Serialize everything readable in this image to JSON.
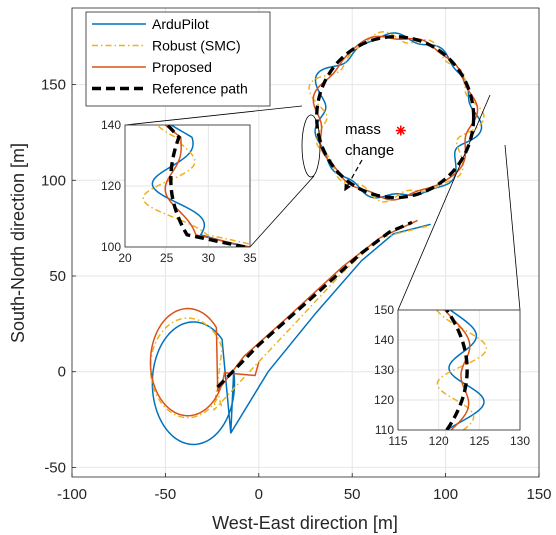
{
  "chart_data": {
    "type": "line",
    "xlabel": "West-East direction [m]",
    "ylabel": "South-North direction [m]",
    "xlim": [
      -100,
      150
    ],
    "ylim": [
      -55,
      190
    ],
    "xticks": [
      -100,
      -50,
      0,
      50,
      100,
      150
    ],
    "yticks": [
      -50,
      0,
      50,
      100,
      150
    ],
    "grid": true,
    "legend_position": "top-left",
    "annotation": {
      "text_line1": "mass",
      "text_line2": "change",
      "marker_point": [
        76,
        126
      ],
      "marker_color": "#ff0000"
    },
    "series": [
      {
        "name": "ArduPilot",
        "color": "#0072bd",
        "style": "solid"
      },
      {
        "name": "Robust (SMC)",
        "color": "#edb120",
        "style": "dashdot"
      },
      {
        "name": "Proposed",
        "color": "#d95319",
        "style": "solid"
      },
      {
        "name": "Reference path",
        "color": "#000000",
        "style": "dashed"
      }
    ],
    "reference_circle": {
      "center": [
        73,
        133
      ],
      "radius": 42
    },
    "insets": [
      {
        "xticks": [
          20,
          25,
          30,
          35
        ],
        "yticks": [
          100,
          120,
          140
        ],
        "xlim": [
          20,
          35
        ],
        "ylim": [
          100,
          140
        ]
      },
      {
        "xticks": [
          115,
          120,
          125,
          130
        ],
        "yticks": [
          110,
          120,
          130,
          140,
          150
        ],
        "xlim": [
          115,
          130
        ],
        "ylim": [
          110,
          150
        ]
      }
    ]
  }
}
